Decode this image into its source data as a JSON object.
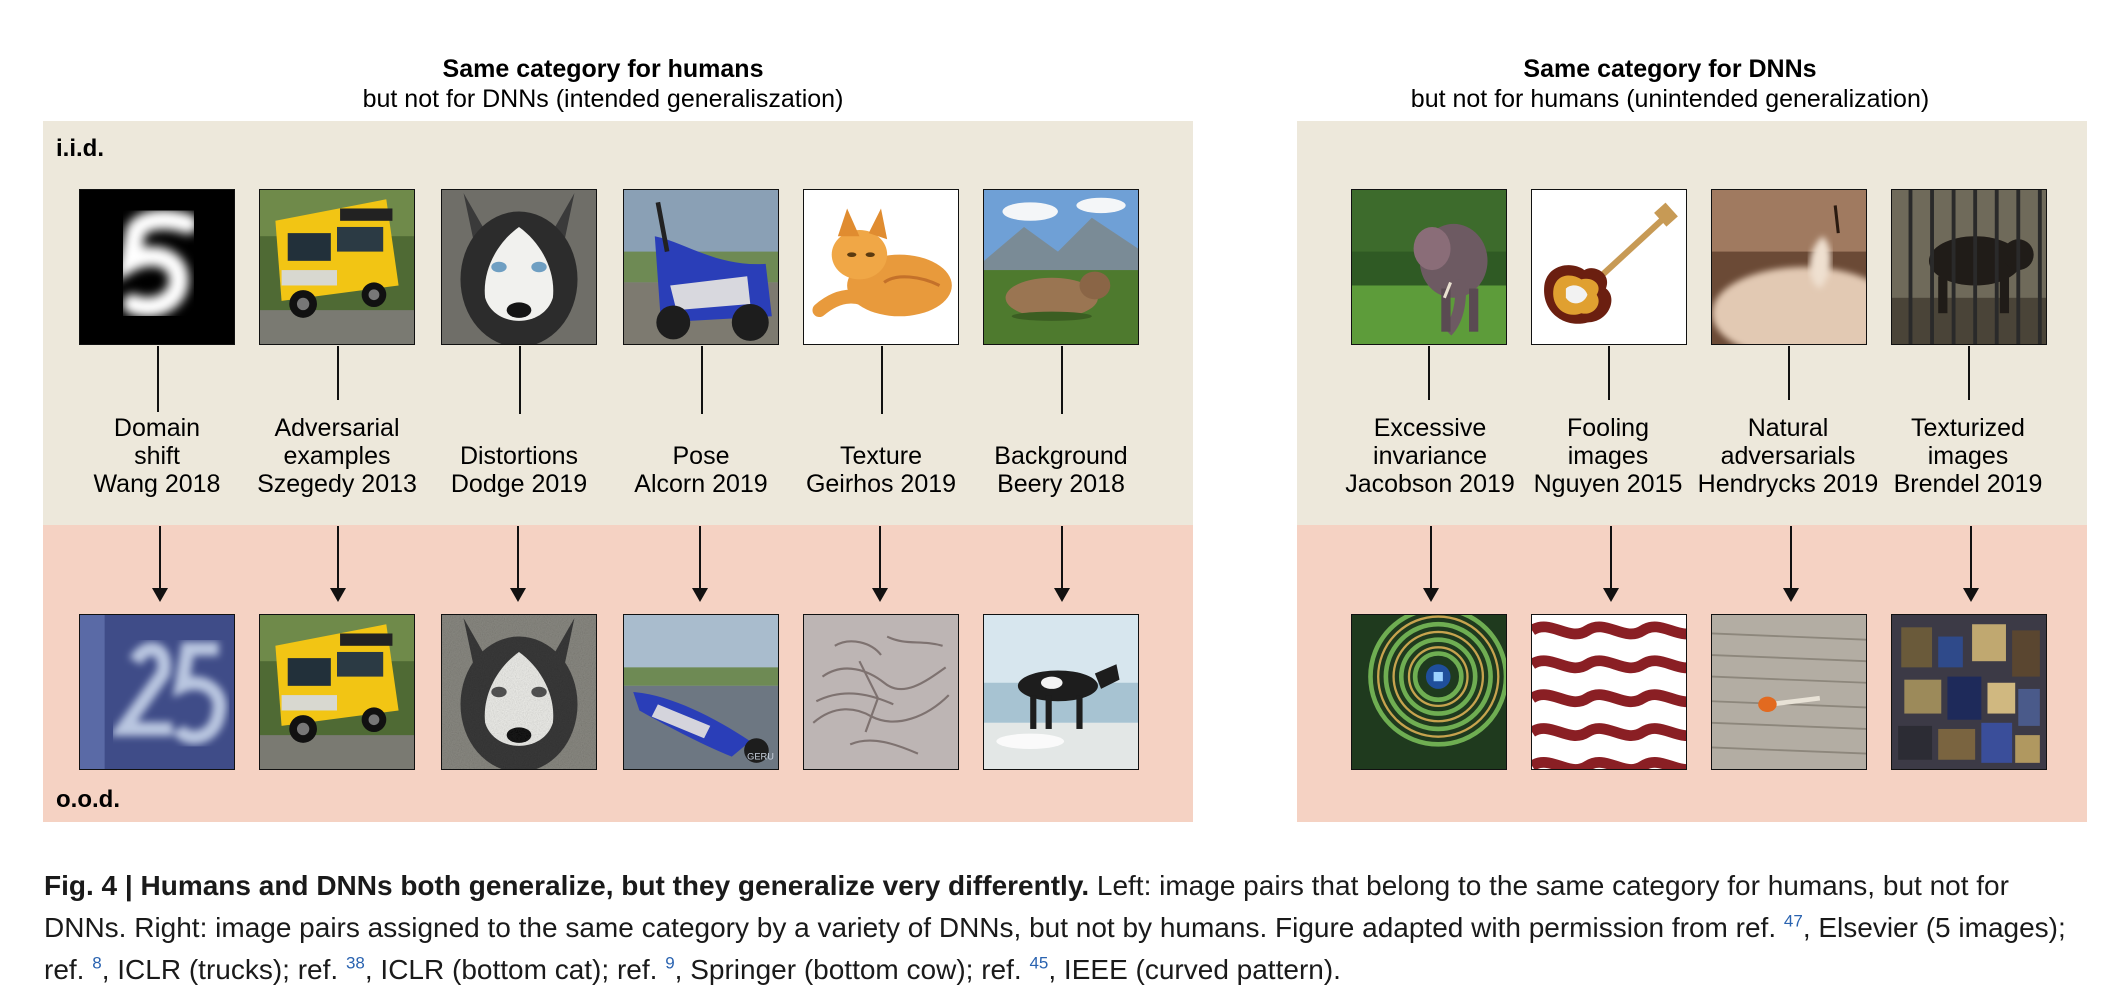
{
  "left_panel": {
    "title": "Same category for humans",
    "subtitle": "but not for DNNs (intended generaliszation)",
    "iid_label": "i.i.d.",
    "ood_label": "o.o.d.",
    "columns": [
      {
        "line1": "Domain",
        "line2": "shift",
        "line3": "Wang 2018",
        "top_image": "mnist-digit-5",
        "bottom_image": "svhn-digit-25"
      },
      {
        "line1": "Adversarial",
        "line2": "examples",
        "line3": "Szegedy 2013",
        "top_image": "yellow-truck",
        "bottom_image": "yellow-truck-adversarial"
      },
      {
        "line1": "",
        "line2": "Distortions",
        "line3": "Dodge 2019",
        "top_image": "husky",
        "bottom_image": "husky-noisy"
      },
      {
        "line1": "",
        "line2": "Pose",
        "line3": "Alcorn 2019",
        "top_image": "blue-scooter",
        "bottom_image": "scooter-flipped"
      },
      {
        "line1": "",
        "line2": "Texture",
        "line3": "Geirhos 2019",
        "top_image": "orange-cat",
        "bottom_image": "cat-texture-edges"
      },
      {
        "line1": "",
        "line2": "Background",
        "line3": "Beery 2018",
        "top_image": "cow-on-grass",
        "bottom_image": "cow-on-beach"
      }
    ]
  },
  "right_panel": {
    "title": "Same category for DNNs",
    "subtitle": "but not for humans (unintended generalization)",
    "columns": [
      {
        "line1": "Excessive",
        "line2": "invariance",
        "line3": "Jacobson 2019",
        "top_image": "elephant-in-grass",
        "bottom_image": "curved-spiral-pattern"
      },
      {
        "line1": "Fooling",
        "line2": "images",
        "line3": "Nguyen 2015",
        "top_image": "electric-guitar",
        "bottom_image": "red-white-wave-pattern"
      },
      {
        "line1": "Natural",
        "line2": "adversarials",
        "line3": "Hendrycks 2019",
        "top_image": "candle-sepia",
        "bottom_image": "mushroom-on-wood"
      },
      {
        "line1": "Texturized",
        "line2": "images",
        "line3": "Brendel 2019",
        "top_image": "dog-behind-fence",
        "bottom_image": "texturized-scrambled-patches"
      }
    ]
  },
  "caption": {
    "figure_label": "Fig. 4 | Humans and DNNs both generalize, but they generalize very differently.",
    "part1": " Left: image pairs that belong to the same category for humans, but not for DNNs. Right: image pairs assigned to the same category by a variety of DNNs, but not by humans. Figure adapted with permission from ref. ",
    "ref1": "47",
    "part2": ", Elsevier (5 images); ref. ",
    "ref2": "8",
    "part3": ", ICLR (trucks); ref. ",
    "ref3": "38",
    "part4": ", ICLR (bottom cat); ref. ",
    "ref4": "9",
    "part5": ", Springer (bottom cow); ref. ",
    "ref5": "45",
    "part6": ", IEEE (curved pattern)."
  }
}
